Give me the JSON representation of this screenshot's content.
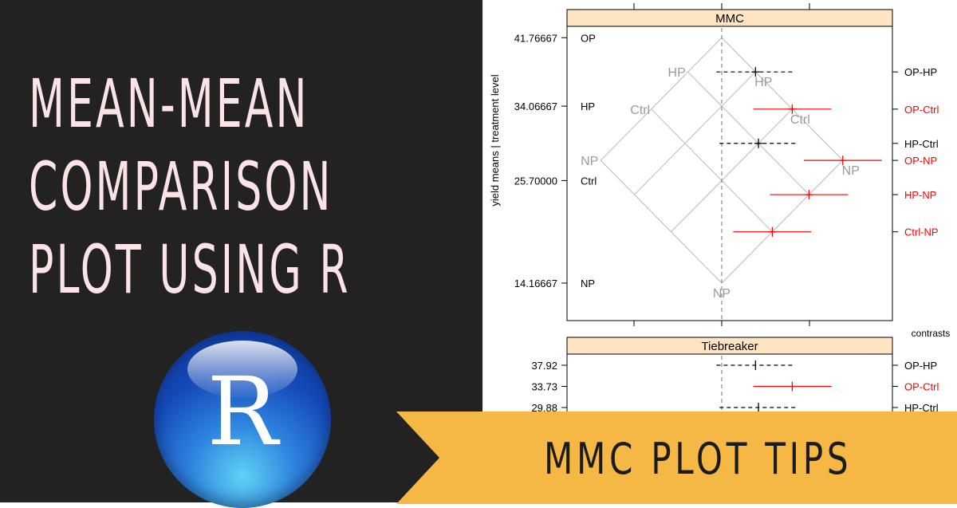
{
  "title_lines": [
    "MEAN-MEAN",
    "COMPARISON",
    "PLOT USING R"
  ],
  "logo_letter": "R",
  "banner_label": "MMC PLOT TIPS",
  "colors": {
    "background_left": "#222222",
    "title_text": "#fbe3e6",
    "banner": "#f6b844",
    "strip": "#ffe4c4",
    "significant": "#ff0000"
  },
  "chart_data": {
    "type": "mmc",
    "ylabel": "yield means  |  treatment level",
    "xlabel": "contrasts",
    "mmc_panel": {
      "strip_label": "MMC",
      "xlim": [
        -36,
        38
      ],
      "xticks": [
        -20,
        0,
        20
      ],
      "means": [
        {
          "level": "OP",
          "value": 41.76667,
          "tick_label": "41.76667"
        },
        {
          "level": "HP",
          "value": 34.06667,
          "tick_label": "34.06667"
        },
        {
          "level": "Ctrl",
          "value": 25.7,
          "tick_label": "25.70000"
        },
        {
          "level": "NP",
          "value": 14.16667,
          "tick_label": "14.16667"
        }
      ],
      "contrasts": [
        {
          "label": "OP-HP",
          "estimate": 7.7,
          "lower": -1.2,
          "upper": 16.6,
          "significant": false
        },
        {
          "label": "OP-Ctrl",
          "estimate": 16.07,
          "lower": 7.2,
          "upper": 25.0,
          "significant": true
        },
        {
          "label": "HP-Ctrl",
          "estimate": 8.37,
          "lower": -0.5,
          "upper": 17.3,
          "significant": false
        },
        {
          "label": "OP-NP",
          "estimate": 27.6,
          "lower": 18.7,
          "upper": 36.5,
          "significant": true
        },
        {
          "label": "HP-NP",
          "estimate": 19.9,
          "lower": 11.0,
          "upper": 28.8,
          "significant": true
        },
        {
          "label": "Ctrl-NP",
          "estimate": 11.53,
          "lower": 2.6,
          "upper": 20.4,
          "significant": true
        }
      ]
    },
    "tiebreaker_panel": {
      "strip_label": "Tiebreaker",
      "rows": [
        {
          "tick_label": "37.92",
          "label": "OP-HP",
          "estimate": 7.7,
          "lower": -1.2,
          "upper": 16.6,
          "significant": false
        },
        {
          "tick_label": "33.73",
          "label": "OP-Ctrl",
          "estimate": 16.07,
          "lower": 7.2,
          "upper": 25.0,
          "significant": true
        },
        {
          "tick_label": "29.88",
          "label": "HP-Ctrl",
          "estimate": 8.37,
          "lower": -0.5,
          "upper": 17.3,
          "significant": false
        }
      ]
    }
  }
}
